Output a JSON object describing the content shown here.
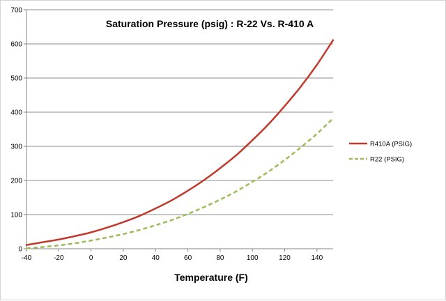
{
  "chart_data": {
    "type": "line",
    "title": "Saturation Pressure (psig) : R-22  Vs.   R-410 A",
    "xlabel": "Temperature (F)",
    "ylabel": "",
    "xlim": [
      -40,
      150
    ],
    "ylim": [
      0,
      700
    ],
    "x_ticks": [
      -40,
      -20,
      0,
      20,
      40,
      60,
      80,
      100,
      120,
      140
    ],
    "y_ticks": [
      0,
      100,
      200,
      300,
      400,
      500,
      600,
      700
    ],
    "grid": "horizontal",
    "legend_position": "right",
    "series": [
      {
        "name": "R410A (PSIG)",
        "color": "#c0392b",
        "style": "solid",
        "x": [
          -40,
          -30,
          -20,
          -10,
          0,
          10,
          20,
          30,
          40,
          50,
          60,
          70,
          80,
          90,
          100,
          110,
          120,
          130,
          140,
          150
        ],
        "y": [
          11,
          19,
          27,
          37,
          48,
          62,
          78,
          96,
          118,
          142,
          170,
          201,
          236,
          274,
          318,
          365,
          418,
          475,
          539,
          611
        ]
      },
      {
        "name": "R22 (PSIG)",
        "color": "#9bbb59",
        "style": "dashed",
        "x": [
          -40,
          -30,
          -20,
          -10,
          0,
          10,
          20,
          30,
          40,
          50,
          60,
          70,
          80,
          90,
          100,
          110,
          120,
          130,
          140,
          150
        ],
        "y": [
          1,
          5,
          10,
          16,
          24,
          33,
          43,
          55,
          69,
          84,
          102,
          122,
          144,
          168,
          196,
          226,
          260,
          297,
          337,
          382
        ]
      }
    ]
  }
}
